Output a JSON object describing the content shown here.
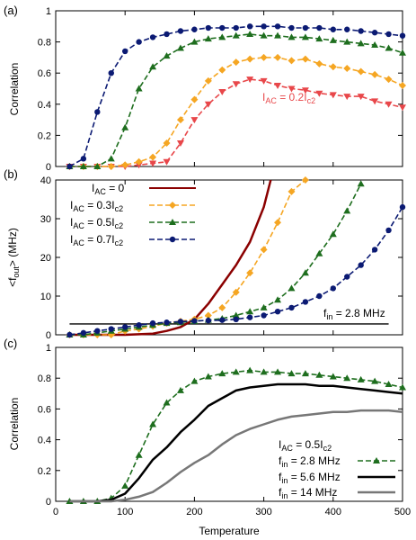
{
  "figure": {
    "xlabel": "Temperature",
    "panel_labels": [
      "(a)",
      "(b)",
      "(c)"
    ]
  },
  "chart_data": [
    {
      "type": "line",
      "panel": "(a)",
      "xlabel": "",
      "ylabel": "Correlation",
      "xlim": [
        0,
        500
      ],
      "ylim": [
        0,
        1
      ],
      "xticks": [
        0,
        100,
        200,
        300,
        400,
        500
      ],
      "yticks": [
        0,
        0.2,
        0.4,
        0.6,
        0.8,
        1
      ],
      "grid": false,
      "annotation": {
        "main": "I",
        "sub1": "AC",
        "mid": " = 0.2I",
        "sub2": "c2",
        "color": "#e8474a"
      },
      "series": [
        {
          "key": "0.2",
          "color": "#e8474a",
          "marker": "triangle-down",
          "x": [
            20,
            40,
            60,
            80,
            100,
            120,
            140,
            160,
            180,
            200,
            220,
            240,
            260,
            280,
            300,
            320,
            340,
            360,
            380,
            400,
            420,
            440,
            460,
            480,
            500
          ],
          "y": [
            0.0,
            0.0,
            0.0,
            0.0,
            0.0,
            0.01,
            0.02,
            0.03,
            0.15,
            0.3,
            0.4,
            0.48,
            0.53,
            0.56,
            0.55,
            0.52,
            0.5,
            0.49,
            0.47,
            0.46,
            0.45,
            0.45,
            0.42,
            0.4,
            0.38
          ]
        },
        {
          "key": "0.3",
          "color": "#f5a623",
          "marker": "diamond",
          "x": [
            20,
            40,
            60,
            80,
            100,
            120,
            140,
            160,
            180,
            200,
            220,
            240,
            260,
            280,
            300,
            320,
            340,
            360,
            380,
            400,
            420,
            440,
            460,
            480,
            500
          ],
          "y": [
            0.0,
            0.0,
            0.0,
            0.0,
            0.01,
            0.03,
            0.06,
            0.15,
            0.3,
            0.43,
            0.55,
            0.62,
            0.67,
            0.69,
            0.7,
            0.7,
            0.68,
            0.69,
            0.66,
            0.64,
            0.63,
            0.61,
            0.59,
            0.56,
            0.52
          ]
        },
        {
          "key": "0.5",
          "color": "#1e6e1e",
          "marker": "triangle-up",
          "x": [
            20,
            40,
            60,
            80,
            100,
            120,
            140,
            160,
            180,
            200,
            220,
            240,
            260,
            280,
            300,
            320,
            340,
            360,
            380,
            400,
            420,
            440,
            460,
            480,
            500
          ],
          "y": [
            0.0,
            0.0,
            0.0,
            0.05,
            0.25,
            0.5,
            0.64,
            0.71,
            0.76,
            0.8,
            0.82,
            0.83,
            0.84,
            0.85,
            0.84,
            0.84,
            0.83,
            0.83,
            0.82,
            0.81,
            0.8,
            0.79,
            0.78,
            0.76,
            0.73
          ]
        },
        {
          "key": "0.7",
          "color": "#0b1a73",
          "marker": "circle",
          "x": [
            20,
            40,
            60,
            80,
            100,
            120,
            140,
            160,
            180,
            200,
            220,
            240,
            260,
            280,
            300,
            320,
            340,
            360,
            380,
            400,
            420,
            440,
            460,
            480,
            500
          ],
          "y": [
            0.0,
            0.05,
            0.35,
            0.6,
            0.74,
            0.8,
            0.83,
            0.85,
            0.87,
            0.88,
            0.89,
            0.89,
            0.89,
            0.9,
            0.9,
            0.9,
            0.89,
            0.89,
            0.89,
            0.88,
            0.88,
            0.87,
            0.86,
            0.85,
            0.84
          ]
        }
      ]
    },
    {
      "type": "line",
      "panel": "(b)",
      "xlabel": "",
      "ylabel": "<f_out> (MHz)",
      "xlim": [
        0,
        500
      ],
      "ylim": [
        0,
        40
      ],
      "xticks": [
        0,
        100,
        200,
        300,
        400,
        500
      ],
      "yticks": [
        0,
        10,
        20,
        30,
        40
      ],
      "grid": false,
      "legend_position": "top-left",
      "hline": {
        "y": 2.8,
        "x": [
          20,
          480
        ],
        "label_main": "f",
        "label_sub": "in",
        "label_rest": " = 2.8 MHz"
      },
      "series": [
        {
          "key": "0",
          "label_prefix": "I",
          "label_sub1": "AC",
          "label_mid": " = 0",
          "label_sub2": "",
          "color": "#8b0000",
          "marker": "none",
          "x": [
            20,
            60,
            100,
            140,
            160,
            180,
            200,
            220,
            240,
            260,
            280,
            300,
            310
          ],
          "y": [
            0,
            0,
            0,
            0.3,
            1,
            2,
            4,
            8,
            13,
            18,
            24,
            33,
            40
          ]
        },
        {
          "key": "0.3",
          "label_prefix": "I",
          "label_sub1": "AC",
          "label_mid": " = 0.3I",
          "label_sub2": "c2",
          "color": "#f5a623",
          "marker": "diamond",
          "x": [
            20,
            40,
            60,
            80,
            100,
            120,
            140,
            160,
            180,
            200,
            220,
            240,
            260,
            280,
            300,
            320,
            340,
            360
          ],
          "y": [
            0,
            0,
            0,
            0,
            1,
            1.5,
            2.2,
            3,
            3.5,
            4,
            5,
            7,
            11,
            16,
            22,
            29,
            37,
            40
          ]
        },
        {
          "key": "0.5",
          "label_prefix": "I",
          "label_sub1": "AC",
          "label_mid": " = 0.5I",
          "label_sub2": "c2",
          "color": "#1e6e1e",
          "marker": "triangle-up",
          "x": [
            20,
            40,
            60,
            80,
            100,
            120,
            140,
            160,
            180,
            200,
            220,
            240,
            260,
            280,
            300,
            320,
            340,
            360,
            380,
            400,
            420,
            440
          ],
          "y": [
            0,
            0,
            0.5,
            1,
            1.5,
            2,
            2.5,
            3,
            3.2,
            3.5,
            3.8,
            4.2,
            5,
            6,
            7,
            9,
            12,
            16,
            21,
            26,
            32,
            39
          ]
        },
        {
          "key": "0.7",
          "label_prefix": "I",
          "label_sub1": "AC",
          "label_mid": " = 0.7I",
          "label_sub2": "c2",
          "color": "#0b1a73",
          "marker": "circle",
          "x": [
            20,
            40,
            60,
            80,
            100,
            120,
            140,
            160,
            180,
            200,
            220,
            240,
            260,
            280,
            300,
            320,
            340,
            360,
            380,
            400,
            420,
            440,
            460,
            480,
            500
          ],
          "y": [
            0,
            0.5,
            1,
            1.5,
            2,
            2.5,
            3,
            3.2,
            3.4,
            3.6,
            3.7,
            3.8,
            4,
            4.5,
            5,
            6,
            7,
            8.5,
            10,
            12,
            15,
            18,
            22,
            27,
            33
          ]
        }
      ]
    },
    {
      "type": "line",
      "panel": "(c)",
      "xlabel": "Temperature",
      "ylabel": "Correlation",
      "xlim": [
        0,
        500
      ],
      "ylim": [
        0,
        1
      ],
      "xticks": [
        0,
        100,
        200,
        300,
        400,
        500
      ],
      "yticks": [
        0,
        0.2,
        0.4,
        0.6,
        0.8,
        1
      ],
      "grid": false,
      "legend_position": "bottom-right",
      "legend_title": {
        "main": "I",
        "sub1": "AC",
        "mid": " = 0.5I",
        "sub2": "c2"
      },
      "series": [
        {
          "key": "2.8",
          "label_main": "f",
          "label_sub": "in",
          "label_rest": " = 2.8 MHz",
          "color": "#1e6e1e",
          "marker": "triangle-up",
          "x": [
            20,
            40,
            60,
            80,
            100,
            120,
            140,
            160,
            180,
            200,
            220,
            240,
            260,
            280,
            300,
            320,
            340,
            360,
            380,
            400,
            420,
            440,
            460,
            480,
            500
          ],
          "y": [
            0.0,
            0.0,
            0.0,
            0.02,
            0.1,
            0.3,
            0.5,
            0.64,
            0.72,
            0.78,
            0.81,
            0.83,
            0.84,
            0.85,
            0.84,
            0.84,
            0.83,
            0.83,
            0.82,
            0.81,
            0.8,
            0.79,
            0.78,
            0.76,
            0.74
          ]
        },
        {
          "key": "5.6",
          "label_main": "f",
          "label_sub": "in",
          "label_rest": " = 5.6 MHz",
          "color": "#000000",
          "marker": "none",
          "x": [
            20,
            60,
            80,
            100,
            120,
            140,
            160,
            180,
            200,
            220,
            240,
            260,
            280,
            300,
            320,
            340,
            360,
            380,
            400,
            420,
            440,
            460,
            480,
            500
          ],
          "y": [
            0.0,
            0.0,
            0.01,
            0.05,
            0.15,
            0.27,
            0.35,
            0.45,
            0.53,
            0.62,
            0.67,
            0.72,
            0.74,
            0.75,
            0.76,
            0.76,
            0.76,
            0.75,
            0.75,
            0.74,
            0.73,
            0.72,
            0.71,
            0.7
          ]
        },
        {
          "key": "14",
          "label_main": "f",
          "label_sub": "in",
          "label_rest": " = 14  MHz",
          "color": "#777777",
          "marker": "none",
          "x": [
            20,
            80,
            100,
            120,
            140,
            160,
            180,
            200,
            220,
            240,
            260,
            280,
            300,
            320,
            340,
            360,
            380,
            400,
            420,
            440,
            460,
            480,
            500
          ],
          "y": [
            0.0,
            0.0,
            0.01,
            0.03,
            0.06,
            0.12,
            0.19,
            0.25,
            0.3,
            0.37,
            0.43,
            0.47,
            0.5,
            0.53,
            0.55,
            0.56,
            0.57,
            0.58,
            0.58,
            0.59,
            0.59,
            0.59,
            0.58
          ]
        }
      ]
    }
  ]
}
